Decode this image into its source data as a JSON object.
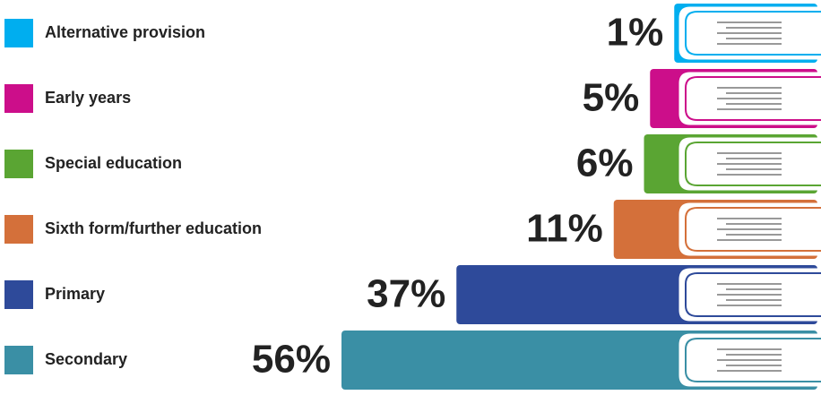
{
  "chart_data": {
    "type": "bar",
    "categories": [
      "Alternative provision",
      "Early years",
      "Special education",
      "Sixth form/further education",
      "Primary",
      "Secondary"
    ],
    "values": [
      1,
      5,
      6,
      11,
      37,
      56
    ],
    "value_labels": [
      "1%",
      "5%",
      "6%",
      "11%",
      "37%",
      "56%"
    ],
    "colors": [
      "#00aeef",
      "#cc0e8a",
      "#5aa533",
      "#d4703a",
      "#2e4a9a",
      "#3a8fa5"
    ]
  }
}
